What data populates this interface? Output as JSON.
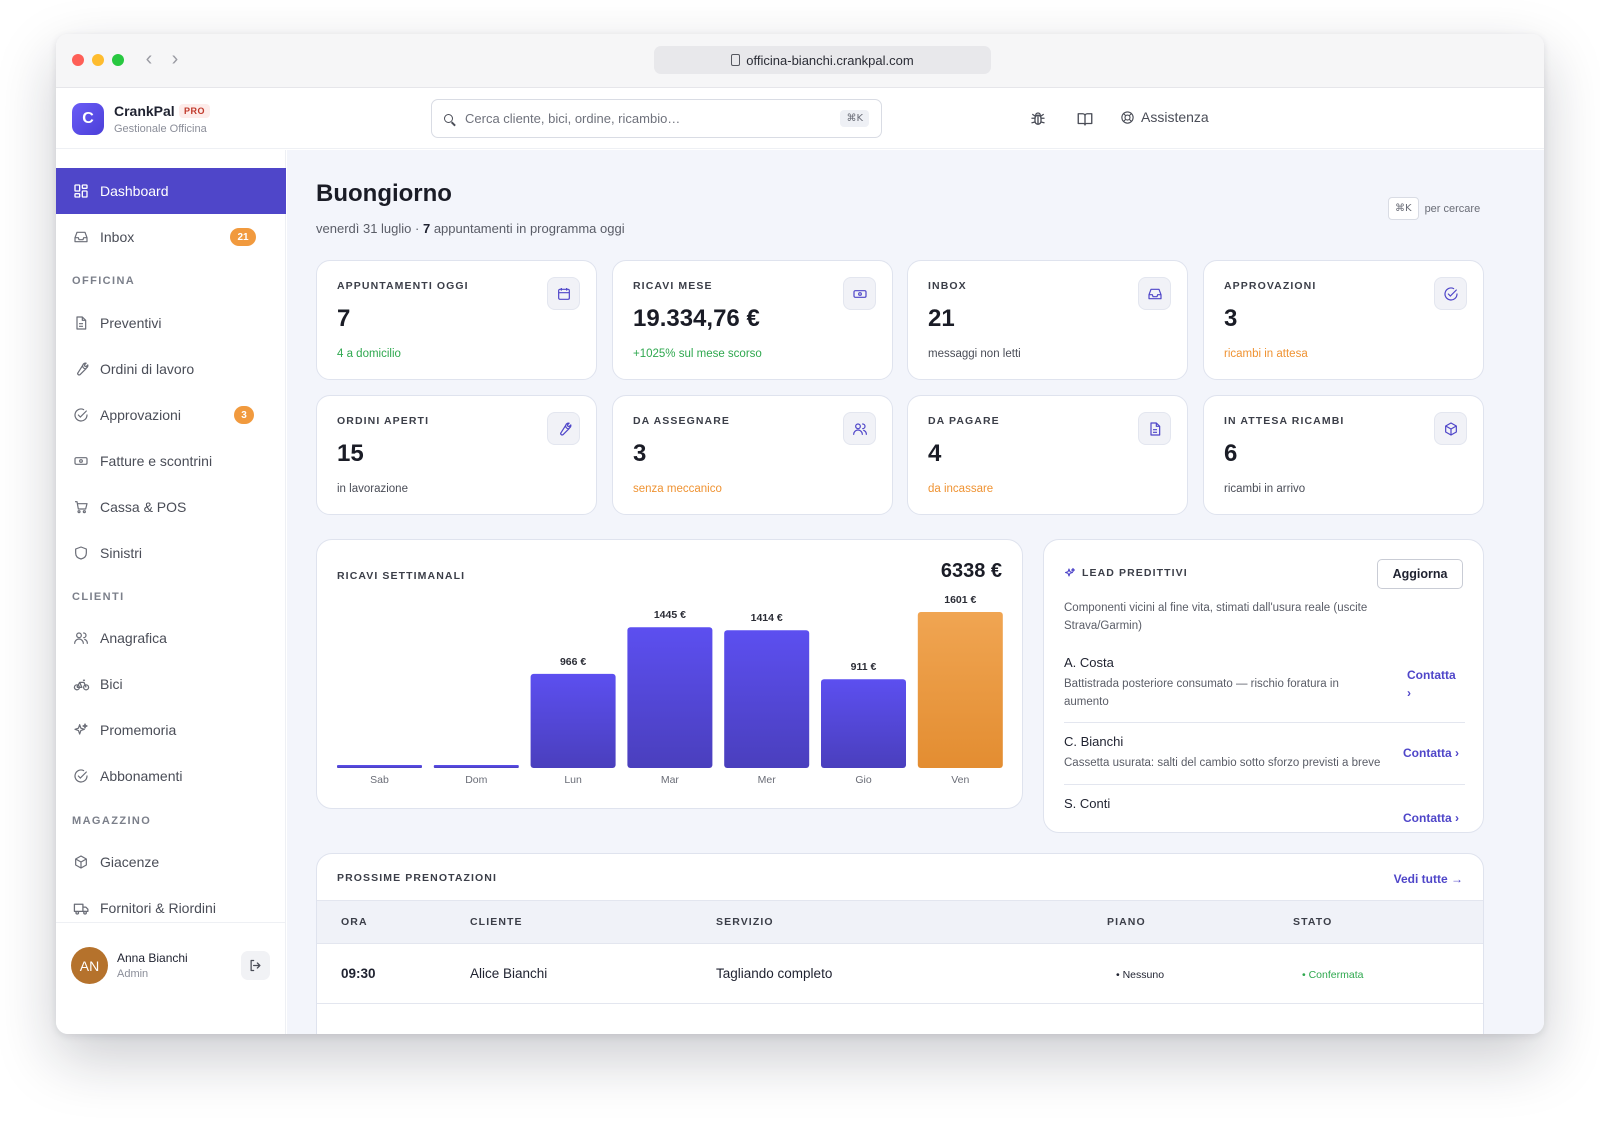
{
  "browser": {
    "url": "officina-bianchi.crankpal.com"
  },
  "brand": {
    "logo_letter": "C",
    "name": "CrankPal",
    "badge": "PRO",
    "subtitle": "Gestionale Officina"
  },
  "search": {
    "placeholder": "Cerca cliente, bici, ordine, ricambio…",
    "shortcut": "⌘K"
  },
  "topbar": {
    "icons": [
      "bug-icon",
      "book-icon"
    ],
    "help_label": "Assistenza"
  },
  "sidebar": {
    "items": [
      {
        "label": "Dashboard",
        "icon": "grid-icon",
        "active": true
      },
      {
        "label": "Inbox",
        "icon": "inbox-icon",
        "badge": "21"
      },
      {
        "label": "Preventivi",
        "icon": "document-icon"
      },
      {
        "label": "Ordini di lavoro",
        "icon": "wrench-icon"
      },
      {
        "label": "Approvazioni",
        "icon": "check-circle-icon",
        "badge": "3"
      },
      {
        "label": "Fatture e scontrini",
        "icon": "banknote-icon"
      },
      {
        "label": "Cassa & POS",
        "icon": "cart-icon"
      },
      {
        "label": "Sinistri",
        "icon": "shield-icon"
      },
      {
        "label": "Anagrafica",
        "icon": "users-icon"
      },
      {
        "label": "Bici",
        "icon": "bike-icon"
      },
      {
        "label": "Promemoria",
        "icon": "sparkles-icon"
      },
      {
        "label": "Abbonamenti",
        "icon": "check-circle-icon"
      },
      {
        "label": "Giacenze",
        "icon": "box-icon"
      },
      {
        "label": "Fornitori & Riordini",
        "icon": "truck-icon"
      }
    ],
    "sections": [
      "OFFICINA",
      "CLIENTI",
      "MAGAZZINO"
    ],
    "user": {
      "initials": "AN",
      "name": "Anna Bianchi",
      "role": "Admin"
    }
  },
  "header": {
    "greeting": "Buongiorno",
    "date": "venerdì 31 luglio",
    "separator": " · ",
    "appointments_count": "7",
    "appointments_text": " appuntamenti in programma oggi",
    "hint_key": "⌘K",
    "hint_text": "per cercare"
  },
  "stats": [
    {
      "label": "APPUNTAMENTI OGGI",
      "value": "7",
      "note": "4 a domicilio",
      "note_color": "#2fa84f",
      "icon": "calendar-icon"
    },
    {
      "label": "RICAVI MESE",
      "value": "19.334,76 €",
      "note": "+1025% sul mese scorso",
      "note_color": "#2fa84f",
      "icon": "banknote-icon"
    },
    {
      "label": "INBOX",
      "value": "21",
      "note": "messaggi non letti",
      "note_color": "#4a4d57",
      "icon": "inbox-icon"
    },
    {
      "label": "APPROVAZIONI",
      "value": "3",
      "note": "ricambi in attesa",
      "note_color": "#ef9333",
      "icon": "check-circle-icon"
    },
    {
      "label": "ORDINI APERTI",
      "value": "15",
      "note": "in lavorazione",
      "note_color": "#4a4d57",
      "icon": "wrench-icon"
    },
    {
      "label": "DA ASSEGNARE",
      "value": "3",
      "note": "senza meccanico",
      "note_color": "#ef9333",
      "icon": "users-icon"
    },
    {
      "label": "DA PAGARE",
      "value": "4",
      "note": "da incassare",
      "note_color": "#ef9333",
      "icon": "document-icon"
    },
    {
      "label": "IN ATTESA RICAMBI",
      "value": "6",
      "note": "ricambi in arrivo",
      "note_color": "#4a4d57",
      "icon": "box-icon"
    }
  ],
  "chart": {
    "title": "RICAVI SETTIMANALI",
    "total": "6338 €"
  },
  "chart_data": {
    "type": "bar",
    "title": "RICAVI SETTIMANALI",
    "categories": [
      "Sab",
      "Dom",
      "Lun",
      "Mar",
      "Mer",
      "Gio",
      "Ven"
    ],
    "values": [
      0,
      0,
      966,
      1445,
      1414,
      911,
      1601
    ],
    "value_labels": [
      "",
      "",
      "966 €",
      "1445 €",
      "1414 €",
      "911 €",
      "1601 €"
    ],
    "highlight_index": 6,
    "colors": {
      "bar": "#5b4ee6",
      "bar_highlight": "#ee9a3a"
    },
    "ylim": [
      0,
      1601
    ],
    "grid": false
  },
  "leads": {
    "title": "LEAD PREDITTIVI",
    "refresh_label": "Aggiorna",
    "description": "Componenti vicini al fine vita, stimati dall'usura reale (uscite Strava/Garmin)",
    "rows": [
      {
        "name": "A. Costa",
        "detail": "Battistrada posteriore consumato — rischio foratura in aumento",
        "action": "Contatta ›"
      },
      {
        "name": "C. Bianchi",
        "detail": "Cassetta usurata: salti del cambio sotto sforzo previsti a breve",
        "action": "Contatta ›"
      },
      {
        "name": "S. Conti",
        "detail": "",
        "action": "Contatta ›"
      }
    ]
  },
  "bookings": {
    "title": "PROSSIME PRENOTAZIONI",
    "see_all": "Vedi tutte →",
    "columns": [
      "ORA",
      "CLIENTE",
      "SERVIZIO",
      "PIANO",
      "STATO"
    ],
    "rows": [
      {
        "time": "09:30",
        "client": "Alice Bianchi",
        "service": "Tagliando completo",
        "plan": "• Nessuno",
        "status": "• Confermata"
      }
    ]
  },
  "colors": {
    "accent": "#4f46c9",
    "warning": "#f19a3e",
    "success": "#2fa84f"
  }
}
